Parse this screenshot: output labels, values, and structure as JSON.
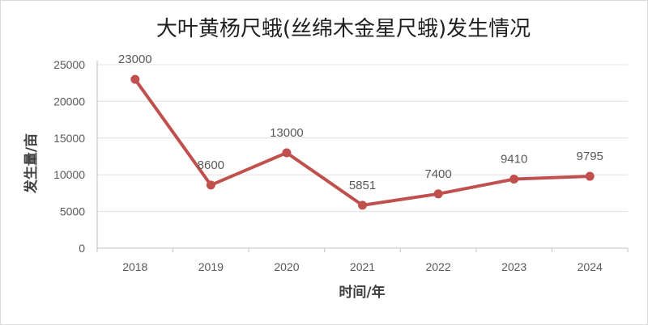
{
  "chart_data": {
    "type": "line",
    "title": "大叶黄杨尺蛾(丝绵木金星尺蛾)发生情况",
    "xlabel": "时间/年",
    "ylabel": "发生量/亩",
    "categories": [
      "2018",
      "2019",
      "2020",
      "2021",
      "2022",
      "2023",
      "2024"
    ],
    "series": [
      {
        "values": [
          23000,
          8600,
          13000,
          5851,
          7400,
          9410,
          9795
        ],
        "labels": [
          "23000",
          "8600",
          "13000",
          "5851",
          "7400",
          "9410",
          "9795"
        ],
        "color": "#c0504d"
      }
    ],
    "ylim": [
      0,
      25000
    ],
    "yticks": [
      "0",
      "5000",
      "10000",
      "15000",
      "20000",
      "25000"
    ],
    "grid": true,
    "legend": "none"
  }
}
